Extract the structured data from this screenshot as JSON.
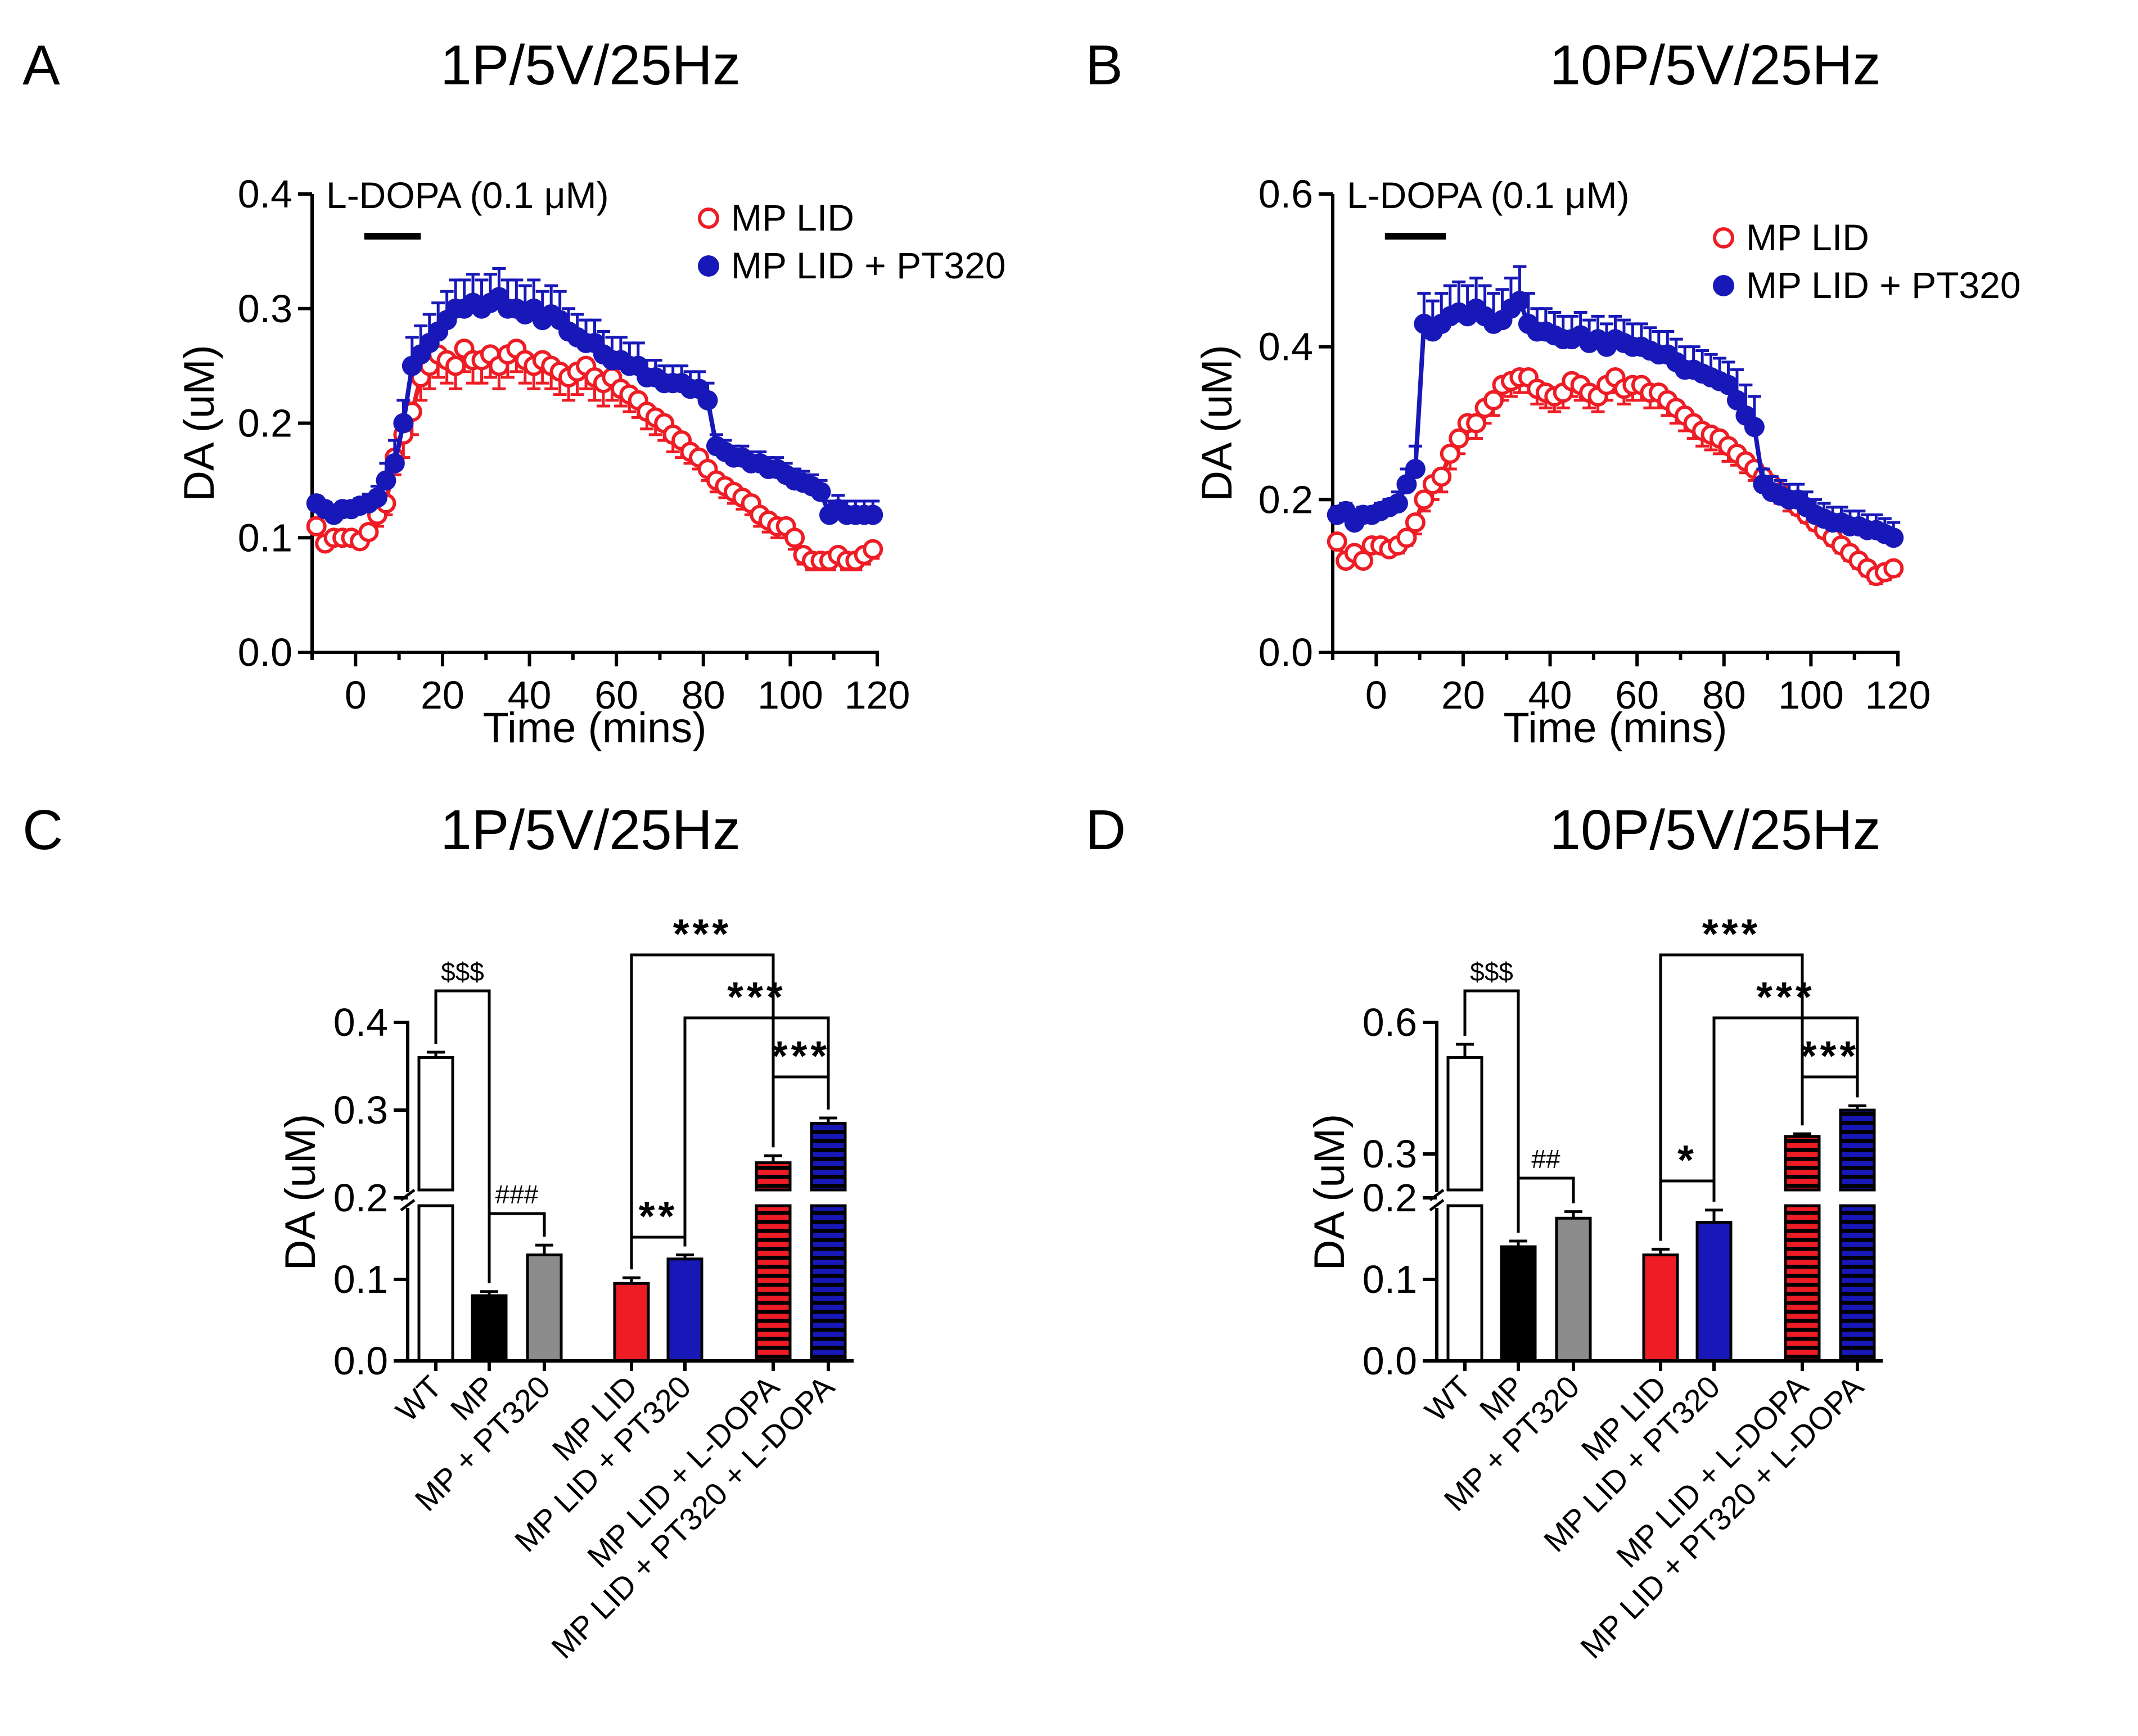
{
  "colors": {
    "red": "#ee1c24",
    "blue": "#1818b8",
    "grey": "#8c8c8c",
    "black": "#000000"
  },
  "panels": {
    "A": {
      "letter": "A",
      "title": "1P/5V/25Hz"
    },
    "B": {
      "letter": "B",
      "title": "10P/5V/25Hz"
    },
    "C": {
      "letter": "C",
      "title": "1P/5V/25Hz"
    },
    "D": {
      "letter": "D",
      "title": "10P/5V/25Hz"
    }
  },
  "chart_data": [
    {
      "id": "A",
      "type": "line",
      "title": "1P/5V/25Hz",
      "xlabel": "Time (mins)",
      "ylabel": "DA (uM)",
      "xlim": [
        -10,
        120
      ],
      "ylim": [
        0,
        0.4
      ],
      "xticks": [
        "0",
        "20",
        "40",
        "60",
        "80",
        "100",
        "120"
      ],
      "yticks": [
        "0.0",
        "0.1",
        "0.2",
        "0.3",
        "0.4"
      ],
      "annotation": "L-DOPA (0.1 μM)",
      "annotation_bar": [
        2,
        15
      ],
      "x": [
        -9,
        -7,
        -5,
        -3,
        -1,
        1,
        3,
        5,
        7,
        9,
        11,
        13,
        15,
        17,
        19,
        21,
        23,
        25,
        27,
        29,
        31,
        33,
        35,
        37,
        39,
        41,
        43,
        45,
        47,
        49,
        51,
        53,
        55,
        57,
        59,
        61,
        63,
        65,
        67,
        69,
        71,
        73,
        75,
        77,
        79,
        81,
        83,
        85,
        87,
        89,
        91,
        93,
        95,
        97,
        99,
        101,
        103,
        105,
        107,
        109,
        111,
        113,
        115,
        117,
        119
      ],
      "series": [
        {
          "name": "MP LID",
          "marker": "open",
          "color": "#ee1c24",
          "values": [
            0.11,
            0.095,
            0.1,
            0.1,
            0.1,
            0.097,
            0.105,
            0.12,
            0.13,
            0.17,
            0.19,
            0.21,
            0.24,
            0.25,
            0.26,
            0.255,
            0.25,
            0.265,
            0.255,
            0.255,
            0.26,
            0.25,
            0.26,
            0.265,
            0.255,
            0.25,
            0.255,
            0.25,
            0.245,
            0.24,
            0.245,
            0.25,
            0.24,
            0.235,
            0.24,
            0.23,
            0.225,
            0.22,
            0.21,
            0.205,
            0.2,
            0.19,
            0.185,
            0.175,
            0.17,
            0.16,
            0.15,
            0.145,
            0.14,
            0.135,
            0.13,
            0.12,
            0.115,
            0.11,
            0.11,
            0.1,
            0.085,
            0.08,
            0.08,
            0.08,
            0.085,
            0.08,
            0.08,
            0.085,
            0.09
          ],
          "errors": [
            0.005,
            0.005,
            0.005,
            0.005,
            0.005,
            0.005,
            0.005,
            0.01,
            0.01,
            0.015,
            0.02,
            0.02,
            0.02,
            0.02,
            0.02,
            0.02,
            0.02,
            0.02,
            0.02,
            0.02,
            0.02,
            0.02,
            0.02,
            0.02,
            0.02,
            0.02,
            0.02,
            0.02,
            0.02,
            0.02,
            0.02,
            0.02,
            0.02,
            0.02,
            0.02,
            0.015,
            0.015,
            0.015,
            0.015,
            0.015,
            0.015,
            0.015,
            0.015,
            0.01,
            0.01,
            0.01,
            0.01,
            0.01,
            0.01,
            0.01,
            0.01,
            0.01,
            0.01,
            0.01,
            0.01,
            0.01,
            0.008,
            0.008,
            0.008,
            0.008,
            0.008,
            0.008,
            0.008,
            0.008,
            0.008
          ]
        },
        {
          "name": "MP LID + PT320",
          "marker": "filled",
          "color": "#1818b8",
          "values": [
            0.13,
            0.125,
            0.12,
            0.125,
            0.125,
            0.128,
            0.13,
            0.135,
            0.15,
            0.165,
            0.2,
            0.25,
            0.26,
            0.27,
            0.28,
            0.29,
            0.3,
            0.3,
            0.305,
            0.3,
            0.305,
            0.31,
            0.3,
            0.3,
            0.295,
            0.3,
            0.29,
            0.295,
            0.29,
            0.28,
            0.275,
            0.27,
            0.27,
            0.26,
            0.255,
            0.255,
            0.25,
            0.25,
            0.24,
            0.24,
            0.235,
            0.235,
            0.235,
            0.23,
            0.23,
            0.22,
            0.18,
            0.175,
            0.17,
            0.17,
            0.165,
            0.165,
            0.16,
            0.16,
            0.155,
            0.15,
            0.148,
            0.145,
            0.14,
            0.12,
            0.125,
            0.12,
            0.12,
            0.12,
            0.12
          ],
          "errors": [
            0.006,
            0.006,
            0.006,
            0.006,
            0.006,
            0.006,
            0.008,
            0.01,
            0.015,
            0.02,
            0.02,
            0.025,
            0.025,
            0.025,
            0.025,
            0.025,
            0.025,
            0.025,
            0.025,
            0.025,
            0.025,
            0.025,
            0.025,
            0.025,
            0.025,
            0.025,
            0.025,
            0.025,
            0.025,
            0.02,
            0.02,
            0.02,
            0.02,
            0.02,
            0.02,
            0.02,
            0.02,
            0.02,
            0.015,
            0.015,
            0.015,
            0.015,
            0.015,
            0.015,
            0.015,
            0.015,
            0.01,
            0.01,
            0.01,
            0.01,
            0.01,
            0.01,
            0.01,
            0.01,
            0.01,
            0.01,
            0.01,
            0.01,
            0.01,
            0.012,
            0.012,
            0.012,
            0.012,
            0.012,
            0.012
          ]
        }
      ]
    },
    {
      "id": "B",
      "type": "line",
      "title": "10P/5V/25Hz",
      "xlabel": "Time (mins)",
      "ylabel": "DA (uM)",
      "xlim": [
        -10,
        120
      ],
      "ylim": [
        0,
        0.6
      ],
      "xticks": [
        "0",
        "20",
        "40",
        "60",
        "80",
        "100",
        "120"
      ],
      "yticks": [
        "0.0",
        "0.2",
        "0.4",
        "0.6"
      ],
      "annotation": "L-DOPA (0.1 μM)",
      "annotation_bar": [
        2,
        16
      ],
      "x": [
        -9,
        -7,
        -5,
        -3,
        -1,
        1,
        3,
        5,
        7,
        9,
        11,
        13,
        15,
        17,
        19,
        21,
        23,
        25,
        27,
        29,
        31,
        33,
        35,
        37,
        39,
        41,
        43,
        45,
        47,
        49,
        51,
        53,
        55,
        57,
        59,
        61,
        63,
        65,
        67,
        69,
        71,
        73,
        75,
        77,
        79,
        81,
        83,
        85,
        87,
        89,
        91,
        93,
        95,
        97,
        99,
        101,
        103,
        105,
        107,
        109,
        111,
        113,
        115,
        117,
        119
      ],
      "series": [
        {
          "name": "MP LID",
          "marker": "open",
          "color": "#ee1c24",
          "values": [
            0.145,
            0.12,
            0.13,
            0.12,
            0.14,
            0.14,
            0.135,
            0.14,
            0.15,
            0.17,
            0.2,
            0.22,
            0.23,
            0.26,
            0.28,
            0.3,
            0.3,
            0.32,
            0.33,
            0.35,
            0.355,
            0.36,
            0.36,
            0.345,
            0.34,
            0.335,
            0.34,
            0.355,
            0.35,
            0.34,
            0.335,
            0.35,
            0.36,
            0.345,
            0.35,
            0.35,
            0.34,
            0.34,
            0.33,
            0.32,
            0.31,
            0.3,
            0.29,
            0.285,
            0.28,
            0.27,
            0.26,
            0.25,
            0.24,
            0.23,
            0.22,
            0.21,
            0.2,
            0.19,
            0.18,
            0.17,
            0.16,
            0.15,
            0.14,
            0.13,
            0.12,
            0.11,
            0.1,
            0.105,
            0.11
          ],
          "errors": [
            0.005,
            0.005,
            0.005,
            0.005,
            0.005,
            0.005,
            0.005,
            0.01,
            0.01,
            0.015,
            0.015,
            0.02,
            0.02,
            0.02,
            0.02,
            0.02,
            0.02,
            0.02,
            0.02,
            0.02,
            0.02,
            0.02,
            0.02,
            0.02,
            0.02,
            0.02,
            0.02,
            0.02,
            0.02,
            0.02,
            0.02,
            0.02,
            0.02,
            0.02,
            0.02,
            0.02,
            0.02,
            0.02,
            0.02,
            0.02,
            0.02,
            0.02,
            0.02,
            0.02,
            0.02,
            0.02,
            0.015,
            0.015,
            0.015,
            0.015,
            0.015,
            0.015,
            0.015,
            0.01,
            0.01,
            0.01,
            0.01,
            0.01,
            0.01,
            0.01,
            0.01,
            0.01,
            0.01,
            0.01,
            0.01
          ]
        },
        {
          "name": "MP LID + PT320",
          "marker": "filled",
          "color": "#1818b8",
          "values": [
            0.18,
            0.185,
            0.17,
            0.18,
            0.18,
            0.185,
            0.19,
            0.195,
            0.22,
            0.24,
            0.43,
            0.42,
            0.43,
            0.44,
            0.445,
            0.44,
            0.45,
            0.44,
            0.43,
            0.435,
            0.45,
            0.46,
            0.43,
            0.42,
            0.42,
            0.415,
            0.41,
            0.41,
            0.415,
            0.405,
            0.41,
            0.4,
            0.41,
            0.405,
            0.4,
            0.4,
            0.395,
            0.39,
            0.39,
            0.38,
            0.37,
            0.37,
            0.365,
            0.36,
            0.355,
            0.35,
            0.33,
            0.31,
            0.295,
            0.22,
            0.21,
            0.205,
            0.2,
            0.2,
            0.19,
            0.18,
            0.175,
            0.17,
            0.17,
            0.165,
            0.165,
            0.16,
            0.16,
            0.155,
            0.15
          ],
          "errors": [
            0.01,
            0.01,
            0.01,
            0.01,
            0.01,
            0.01,
            0.01,
            0.015,
            0.02,
            0.03,
            0.04,
            0.04,
            0.04,
            0.04,
            0.04,
            0.04,
            0.04,
            0.04,
            0.04,
            0.04,
            0.04,
            0.045,
            0.04,
            0.03,
            0.03,
            0.03,
            0.03,
            0.03,
            0.03,
            0.03,
            0.03,
            0.03,
            0.03,
            0.03,
            0.03,
            0.03,
            0.03,
            0.03,
            0.03,
            0.03,
            0.03,
            0.03,
            0.03,
            0.03,
            0.03,
            0.03,
            0.04,
            0.04,
            0.04,
            0.02,
            0.02,
            0.02,
            0.02,
            0.02,
            0.02,
            0.02,
            0.02,
            0.02,
            0.02,
            0.02,
            0.02,
            0.02,
            0.02,
            0.02,
            0.02
          ]
        }
      ]
    },
    {
      "id": "C",
      "type": "bar",
      "title": "1P/5V/25Hz",
      "ylabel": "DA (uM)",
      "axis_break_at": 0.2,
      "yticks": [
        "0.0",
        "0.1",
        "0.2",
        "0.3",
        "0.4"
      ],
      "categories": [
        "WT",
        "MP",
        "MP + PT320",
        "MP LID",
        "MP LID + PT320",
        "MP LID + L-DOPA",
        "MP LID + PT320 + L-DOPA"
      ],
      "values": [
        0.36,
        0.08,
        0.13,
        0.095,
        0.125,
        0.24,
        0.285
      ],
      "errors": [
        0.006,
        0.005,
        0.012,
        0.007,
        0.005,
        0.008,
        0.006
      ],
      "fills": [
        "white",
        "black",
        "grey",
        "red",
        "blue",
        "red-striped",
        "blue-striped"
      ],
      "comparisons": [
        {
          "from": 0,
          "to": 1,
          "label": "$$$"
        },
        {
          "from": 1,
          "to": 2,
          "label": "###"
        },
        {
          "from": 3,
          "to": 4,
          "label": "**"
        },
        {
          "from": 3,
          "to": 5,
          "label": "***"
        },
        {
          "from": 4,
          "to": 6,
          "label": "***"
        },
        {
          "from": 5,
          "to": 6,
          "label": "***"
        }
      ]
    },
    {
      "id": "D",
      "type": "bar",
      "title": "10P/5V/25Hz",
      "ylabel": "DA (uM)",
      "axis_break_at": 0.2,
      "yticks": [
        "0.0",
        "0.1",
        "0.2",
        "0.3",
        "0.6"
      ],
      "categories": [
        "WT",
        "MP",
        "MP + PT320",
        "MP LID",
        "MP LID + PT320",
        "MP LID + L-DOPA",
        "MP LID + PT320 + L-DOPA"
      ],
      "values": [
        0.52,
        0.14,
        0.175,
        0.13,
        0.17,
        0.34,
        0.4
      ],
      "errors": [
        0.03,
        0.007,
        0.008,
        0.007,
        0.015,
        0.006,
        0.01
      ],
      "fills": [
        "white",
        "black",
        "grey",
        "red",
        "blue",
        "red-striped",
        "blue-striped"
      ],
      "comparisons": [
        {
          "from": 0,
          "to": 1,
          "label": "$$$"
        },
        {
          "from": 1,
          "to": 2,
          "label": "##"
        },
        {
          "from": 3,
          "to": 4,
          "label": "*"
        },
        {
          "from": 3,
          "to": 5,
          "label": "***"
        },
        {
          "from": 4,
          "to": 6,
          "label": "***"
        },
        {
          "from": 5,
          "to": 6,
          "label": "***"
        }
      ]
    }
  ]
}
